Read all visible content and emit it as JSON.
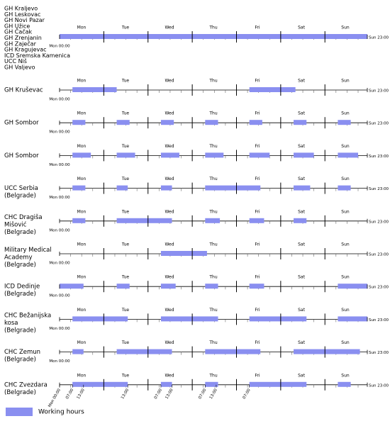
{
  "chart_data": {
    "type": "timeline",
    "categories": [
      "Mon",
      "Tue",
      "Wed",
      "Thu",
      "Fri",
      "Sat",
      "Sun"
    ],
    "xlim": [
      0,
      167
    ],
    "end_ticks": [
      {
        "value": 0,
        "label": "Mon 00:00"
      },
      {
        "value": 167,
        "label": "Sun 23:00"
      }
    ],
    "xticks": [
      24,
      48,
      72,
      96,
      120,
      144
    ],
    "minor_xticks": [
      6,
      12,
      18,
      30,
      36,
      42,
      54,
      60,
      66,
      78,
      84,
      90,
      102,
      108,
      114,
      126,
      132,
      138,
      150,
      156,
      162
    ],
    "bottom_ticks": [
      {
        "value": 0,
        "label": "Mon 00:00"
      },
      {
        "value": 7,
        "label": "07:00"
      },
      {
        "value": 13,
        "label": "13:00"
      },
      {
        "value": 37,
        "label": "13:00"
      },
      {
        "value": 55,
        "label": "07:00"
      },
      {
        "value": 61,
        "label": "13:00"
      },
      {
        "value": 79,
        "label": "07:00"
      },
      {
        "value": 85,
        "label": "13:00"
      },
      {
        "value": 103,
        "label": "07:00"
      }
    ],
    "color": "#8a8ff0",
    "legend": "Working hours",
    "rows": [
      {
        "label_lines": [
          "GH Kraljevo",
          "GH Leskovac",
          "GH Novi Pazar",
          "GH Užice",
          "GH Čačak",
          "GH Zrenjanin",
          "GH Zaječar",
          "GH Kragujevac",
          "ICD Sremska Kamenica",
          "UCC Niš",
          "GH Valjevo"
        ],
        "intervals": [
          [
            0,
            167
          ]
        ]
      },
      {
        "label_lines": [
          "GH Kruševac"
        ],
        "intervals": [
          [
            7,
            31
          ],
          [
            103,
            128
          ]
        ]
      },
      {
        "label_lines": [
          "GH Sombor"
        ],
        "intervals": [
          [
            7,
            14
          ],
          [
            31,
            38
          ],
          [
            55,
            62
          ],
          [
            79,
            86
          ],
          [
            103,
            110
          ],
          [
            127,
            134
          ],
          [
            151,
            158
          ]
        ]
      },
      {
        "label_lines": [
          "GH Sombor"
        ],
        "intervals": [
          [
            7,
            17
          ],
          [
            31,
            41
          ],
          [
            55,
            65
          ],
          [
            79,
            89
          ],
          [
            103,
            114
          ],
          [
            127,
            138
          ],
          [
            151,
            162
          ]
        ]
      },
      {
        "label_lines": [
          "UCC Serbia",
          "(Belgrade)"
        ],
        "intervals": [
          [
            7,
            14
          ],
          [
            31,
            37
          ],
          [
            55,
            61
          ],
          [
            79,
            109
          ],
          [
            127,
            136
          ],
          [
            151,
            158
          ]
        ]
      },
      {
        "label_lines": [
          "CHC Dragiša",
          "Mišović",
          "(Belgrade)"
        ],
        "intervals": [
          [
            7,
            14
          ],
          [
            31,
            61
          ],
          [
            79,
            87
          ],
          [
            103,
            111
          ],
          [
            127,
            134
          ]
        ]
      },
      {
        "label_lines": [
          "Military Medical",
          "Academy",
          "(Belgrade)"
        ],
        "intervals": [
          [
            55,
            80
          ]
        ]
      },
      {
        "label_lines": [
          "ICD Dedinje",
          "(Belgrade)"
        ],
        "intervals": [
          [
            0,
            13
          ],
          [
            31,
            38
          ],
          [
            55,
            63
          ],
          [
            79,
            86
          ],
          [
            103,
            111
          ],
          [
            151,
            167
          ]
        ]
      },
      {
        "label_lines": [
          "CHC Bežanijska",
          "kosa",
          "(Belgrade)"
        ],
        "intervals": [
          [
            7,
            37
          ],
          [
            55,
            86
          ],
          [
            103,
            134
          ],
          [
            151,
            167
          ]
        ]
      },
      {
        "label_lines": [
          "CHC Zemun",
          "(Belgrade)"
        ],
        "intervals": [
          [
            7,
            13
          ],
          [
            31,
            61
          ],
          [
            79,
            109
          ],
          [
            127,
            163
          ]
        ]
      },
      {
        "label_lines": [
          "CHC Zvezdara",
          "(Belgrade)"
        ],
        "intervals": [
          [
            7,
            37
          ],
          [
            55,
            61
          ],
          [
            79,
            86
          ],
          [
            103,
            134
          ],
          [
            151,
            158
          ]
        ]
      }
    ]
  }
}
